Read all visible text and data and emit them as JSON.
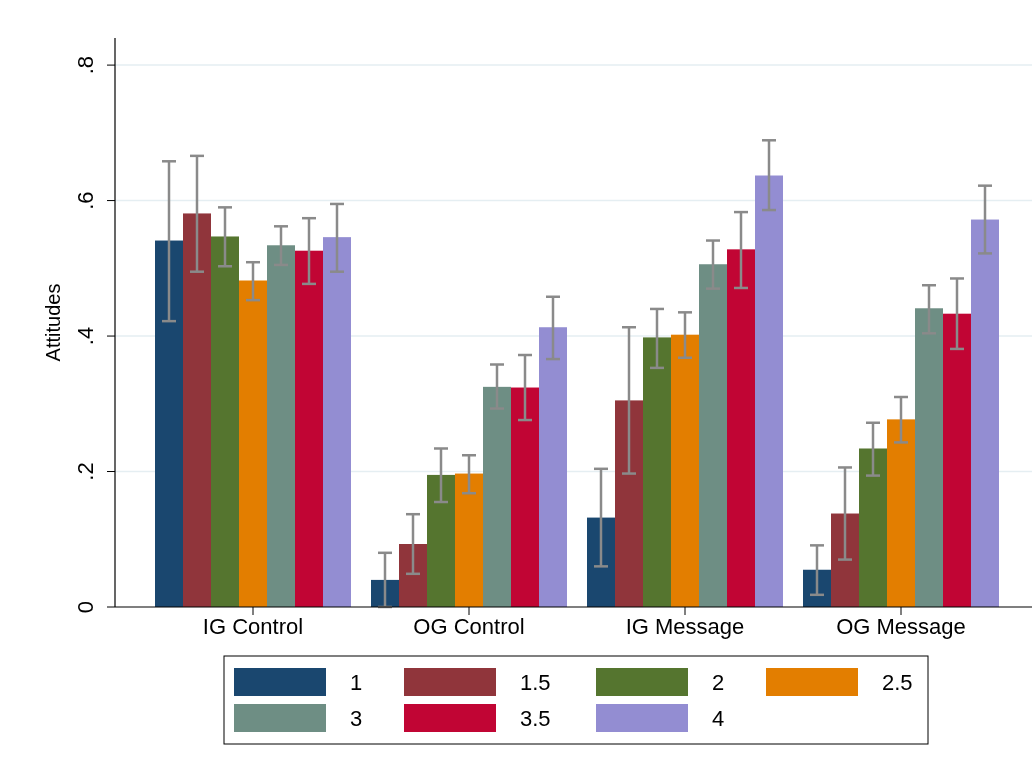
{
  "chart_data": {
    "type": "bar",
    "ylabel": "Attitudes",
    "categories": [
      "IG Control",
      "OG Control",
      "IG Message",
      "OG Message"
    ],
    "series": [
      {
        "name": "1",
        "color": "#1a476f",
        "values": [
          0.541,
          0.04,
          0.132,
          0.055
        ],
        "errors": [
          [
            0.422,
            0.658
          ],
          [
            0.0,
            0.08
          ],
          [
            0.06,
            0.204
          ],
          [
            0.018,
            0.091
          ]
        ]
      },
      {
        "name": "1.5",
        "color": "#90353b",
        "values": [
          0.581,
          0.093,
          0.305,
          0.138
        ],
        "errors": [
          [
            0.495,
            0.666
          ],
          [
            0.049,
            0.137
          ],
          [
            0.197,
            0.413
          ],
          [
            0.07,
            0.206
          ]
        ]
      },
      {
        "name": "2",
        "color": "#55752f",
        "values": [
          0.547,
          0.195,
          0.398,
          0.234
        ],
        "errors": [
          [
            0.503,
            0.59
          ],
          [
            0.155,
            0.234
          ],
          [
            0.353,
            0.44
          ],
          [
            0.194,
            0.272
          ]
        ]
      },
      {
        "name": "2.5",
        "color": "#e37e00",
        "values": [
          0.482,
          0.197,
          0.402,
          0.277
        ],
        "errors": [
          [
            0.453,
            0.509
          ],
          [
            0.168,
            0.224
          ],
          [
            0.368,
            0.435
          ],
          [
            0.243,
            0.31
          ]
        ]
      },
      {
        "name": "3",
        "color": "#6e8e84",
        "values": [
          0.534,
          0.325,
          0.506,
          0.441
        ],
        "errors": [
          [
            0.505,
            0.562
          ],
          [
            0.293,
            0.358
          ],
          [
            0.47,
            0.541
          ],
          [
            0.404,
            0.475
          ]
        ]
      },
      {
        "name": "3.5",
        "color": "#c10534",
        "values": [
          0.526,
          0.324,
          0.528,
          0.433
        ],
        "errors": [
          [
            0.477,
            0.574
          ],
          [
            0.276,
            0.372
          ],
          [
            0.471,
            0.583
          ],
          [
            0.381,
            0.485
          ]
        ]
      },
      {
        "name": "4",
        "color": "#938dd2",
        "values": [
          0.546,
          0.413,
          0.637,
          0.572
        ],
        "errors": [
          [
            0.495,
            0.595
          ],
          [
            0.366,
            0.458
          ],
          [
            0.586,
            0.689
          ],
          [
            0.522,
            0.622
          ]
        ]
      }
    ],
    "ylim": [
      0,
      0.84
    ],
    "yticks": [
      0,
      {
        "value": 0.2,
        "label": ".2"
      },
      {
        "value": 0.4,
        "label": ".4"
      },
      {
        "value": 0.6,
        "label": ".6"
      },
      {
        "value": 0.8,
        "label": ".8"
      }
    ],
    "grid": "y",
    "legend": "bottom"
  }
}
